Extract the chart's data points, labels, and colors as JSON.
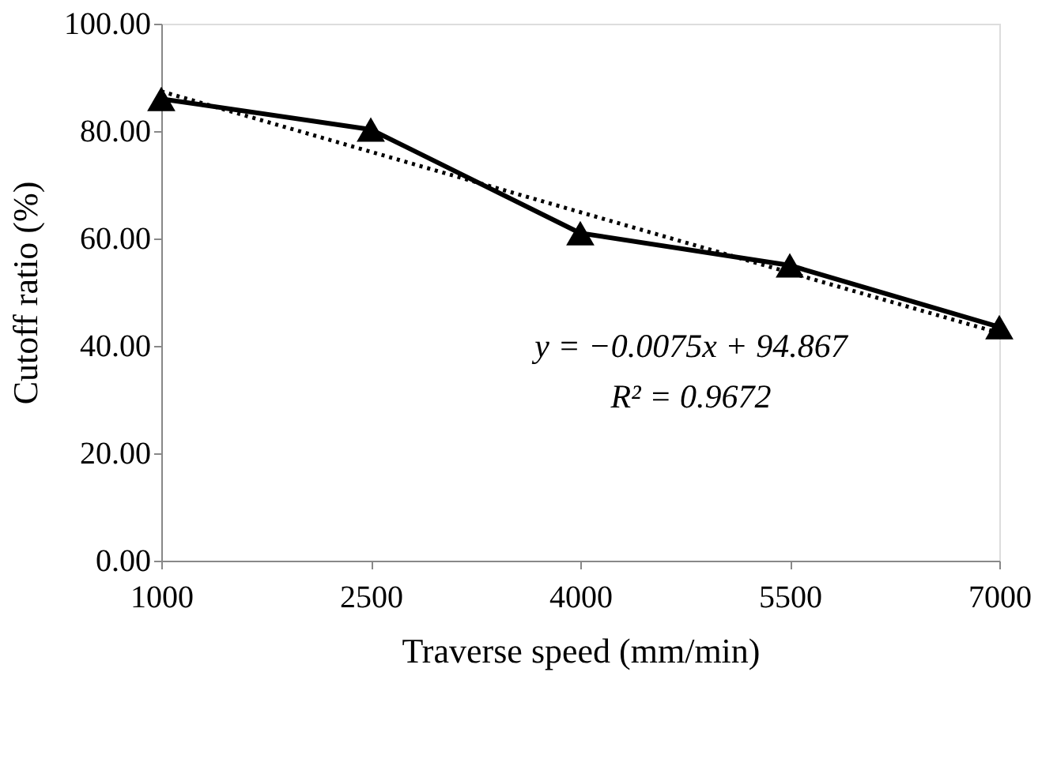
{
  "chart_data": {
    "type": "line",
    "xlabel": "Traverse speed (mm/min)",
    "ylabel": "Cutoff ratio (%)",
    "x": [
      1000,
      2500,
      4000,
      5500,
      7000
    ],
    "series": [
      {
        "color": "#000000",
        "values": [
          86,
          80.3,
          61,
          55,
          43.5
        ],
        "marker": "triangle",
        "line_style": "solid"
      },
      {
        "type": "line",
        "color": "#000000",
        "x": [
          1000,
          7000
        ],
        "values": [
          87.4,
          42.4
        ],
        "marker": "none",
        "line_style": "dotted"
      }
    ],
    "xlim": [
      1000,
      7000
    ],
    "xticks": [
      1000,
      2500,
      4000,
      5500,
      7000
    ],
    "ylim": [
      0,
      100
    ],
    "yticks": [
      {
        "value": 0,
        "label": "0.00"
      },
      {
        "value": 20,
        "label": "20.00"
      },
      {
        "value": 40,
        "label": "40.00"
      },
      {
        "value": 60,
        "label": "60.00"
      },
      {
        "value": 80,
        "label": "80.00"
      },
      {
        "value": 100,
        "label": "100.00"
      }
    ],
    "grid": false,
    "annotations": [
      "y = −0.0075x + 94.867",
      "R² = 0.9672"
    ]
  }
}
